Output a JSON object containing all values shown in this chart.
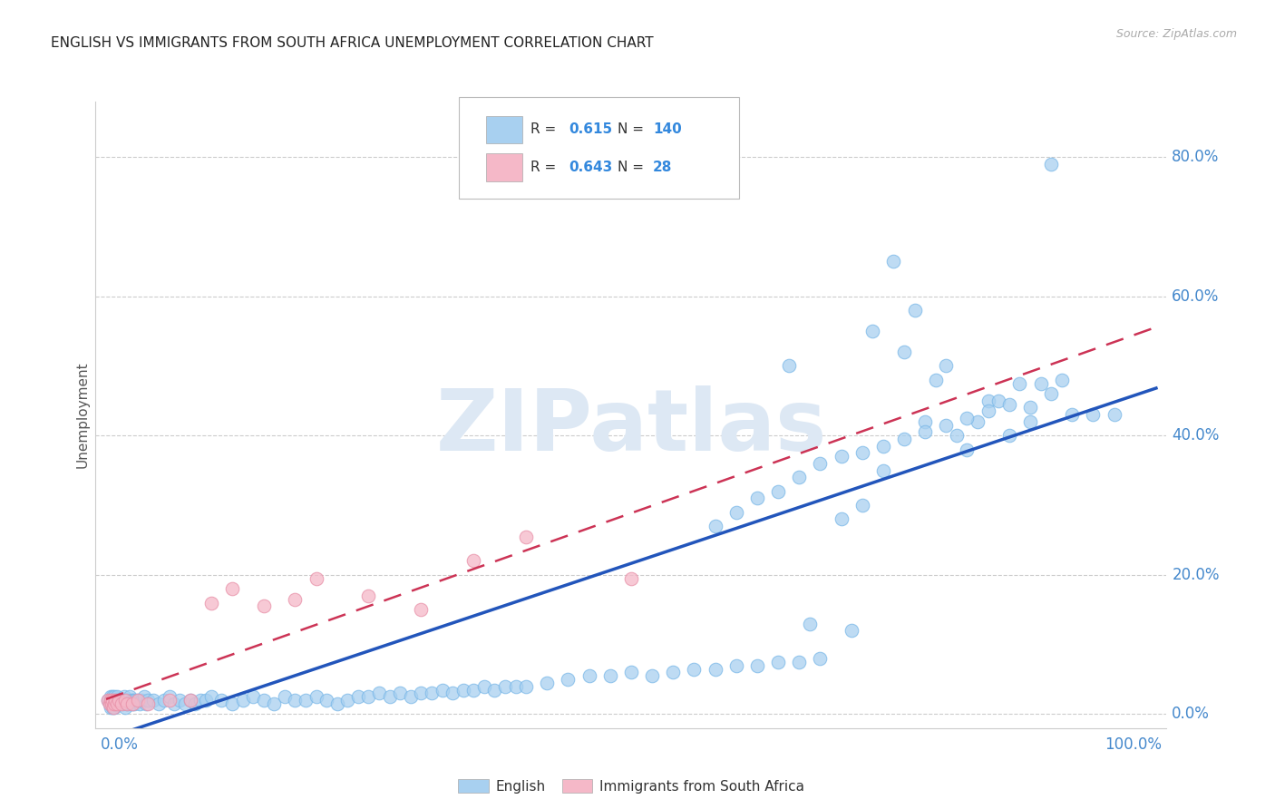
{
  "title": "ENGLISH VS IMMIGRANTS FROM SOUTH AFRICA UNEMPLOYMENT CORRELATION CHART",
  "source": "Source: ZipAtlas.com",
  "ylabel": "Unemployment",
  "ytick_values": [
    0.0,
    0.2,
    0.4,
    0.6,
    0.8
  ],
  "ytick_labels": [
    "0.0%",
    "20.0%",
    "40.0%",
    "60.0%",
    "80.0%"
  ],
  "xlim": [
    0.0,
    1.0
  ],
  "ylim": [
    0.0,
    0.88
  ],
  "english_color": "#a8d0f0",
  "english_edge_color": "#7ab8e8",
  "english_line_color": "#2255bb",
  "immigrants_color": "#f5b8c8",
  "immigrants_edge_color": "#e890a8",
  "immigrants_line_color": "#cc3355",
  "title_color": "#222222",
  "source_color": "#aaaaaa",
  "axis_label_color": "#4488cc",
  "stat_color": "#3388dd",
  "watermark": "ZIPatlas",
  "legend_R_english": "0.615",
  "legend_N_english": "140",
  "legend_R_immigrants": "0.643",
  "legend_N_immigrants": "28",
  "legend_label_english": "English",
  "legend_label_immigrants": "Immigrants from South Africa",
  "english_x": [
    0.002,
    0.003,
    0.004,
    0.004,
    0.005,
    0.005,
    0.006,
    0.006,
    0.007,
    0.007,
    0.008,
    0.008,
    0.009,
    0.009,
    0.01,
    0.01,
    0.011,
    0.012,
    0.013,
    0.014,
    0.015,
    0.016,
    0.017,
    0.018,
    0.019,
    0.02,
    0.021,
    0.022,
    0.023,
    0.024,
    0.025,
    0.026,
    0.027,
    0.028,
    0.03,
    0.032,
    0.034,
    0.036,
    0.038,
    0.04,
    0.045,
    0.05,
    0.055,
    0.06,
    0.065,
    0.07,
    0.075,
    0.08,
    0.085,
    0.09,
    0.095,
    0.1,
    0.11,
    0.12,
    0.13,
    0.14,
    0.15,
    0.16,
    0.17,
    0.18,
    0.19,
    0.2,
    0.21,
    0.22,
    0.23,
    0.24,
    0.25,
    0.26,
    0.27,
    0.28,
    0.29,
    0.3,
    0.31,
    0.32,
    0.33,
    0.34,
    0.35,
    0.36,
    0.37,
    0.38,
    0.39,
    0.4,
    0.42,
    0.44,
    0.46,
    0.48,
    0.5,
    0.52,
    0.54,
    0.56,
    0.58,
    0.6,
    0.62,
    0.64,
    0.66,
    0.68,
    0.7,
    0.72,
    0.74,
    0.76,
    0.78,
    0.8,
    0.82,
    0.84,
    0.86,
    0.88,
    0.9,
    0.65,
    0.67,
    0.71,
    0.73,
    0.75,
    0.77,
    0.79,
    0.81,
    0.83,
    0.85,
    0.87,
    0.89,
    0.91,
    0.58,
    0.6,
    0.62,
    0.64,
    0.66,
    0.68,
    0.7,
    0.72,
    0.74,
    0.76,
    0.78,
    0.8,
    0.82,
    0.84,
    0.86,
    0.88,
    0.9,
    0.92,
    0.94,
    0.96
  ],
  "english_y": [
    0.02,
    0.015,
    0.025,
    0.01,
    0.02,
    0.015,
    0.025,
    0.01,
    0.02,
    0.015,
    0.025,
    0.01,
    0.02,
    0.015,
    0.02,
    0.025,
    0.015,
    0.02,
    0.015,
    0.02,
    0.02,
    0.015,
    0.025,
    0.01,
    0.02,
    0.015,
    0.02,
    0.025,
    0.015,
    0.02,
    0.015,
    0.02,
    0.015,
    0.02,
    0.02,
    0.015,
    0.02,
    0.025,
    0.015,
    0.02,
    0.02,
    0.015,
    0.02,
    0.025,
    0.015,
    0.02,
    0.015,
    0.02,
    0.015,
    0.02,
    0.02,
    0.025,
    0.02,
    0.015,
    0.02,
    0.025,
    0.02,
    0.015,
    0.025,
    0.02,
    0.02,
    0.025,
    0.02,
    0.015,
    0.02,
    0.025,
    0.025,
    0.03,
    0.025,
    0.03,
    0.025,
    0.03,
    0.03,
    0.035,
    0.03,
    0.035,
    0.035,
    0.04,
    0.035,
    0.04,
    0.04,
    0.04,
    0.045,
    0.05,
    0.055,
    0.055,
    0.06,
    0.055,
    0.06,
    0.065,
    0.065,
    0.07,
    0.07,
    0.075,
    0.075,
    0.08,
    0.28,
    0.3,
    0.35,
    0.52,
    0.42,
    0.5,
    0.38,
    0.45,
    0.4,
    0.42,
    0.46,
    0.5,
    0.13,
    0.12,
    0.55,
    0.65,
    0.58,
    0.48,
    0.4,
    0.42,
    0.45,
    0.475,
    0.475,
    0.48,
    0.27,
    0.29,
    0.31,
    0.32,
    0.34,
    0.36,
    0.37,
    0.375,
    0.385,
    0.395,
    0.405,
    0.415,
    0.425,
    0.435,
    0.445,
    0.44,
    0.79,
    0.43,
    0.43,
    0.43
  ],
  "immigrants_x": [
    0.002,
    0.003,
    0.004,
    0.005,
    0.006,
    0.007,
    0.008,
    0.009,
    0.01,
    0.012,
    0.015,
    0.018,
    0.02,
    0.025,
    0.03,
    0.04,
    0.06,
    0.08,
    0.1,
    0.12,
    0.15,
    0.18,
    0.2,
    0.25,
    0.3,
    0.35,
    0.4,
    0.5
  ],
  "immigrants_y": [
    0.02,
    0.015,
    0.02,
    0.015,
    0.02,
    0.01,
    0.015,
    0.02,
    0.015,
    0.02,
    0.015,
    0.02,
    0.015,
    0.015,
    0.02,
    0.015,
    0.02,
    0.02,
    0.16,
    0.18,
    0.155,
    0.165,
    0.195,
    0.17,
    0.15,
    0.22,
    0.255,
    0.195
  ]
}
